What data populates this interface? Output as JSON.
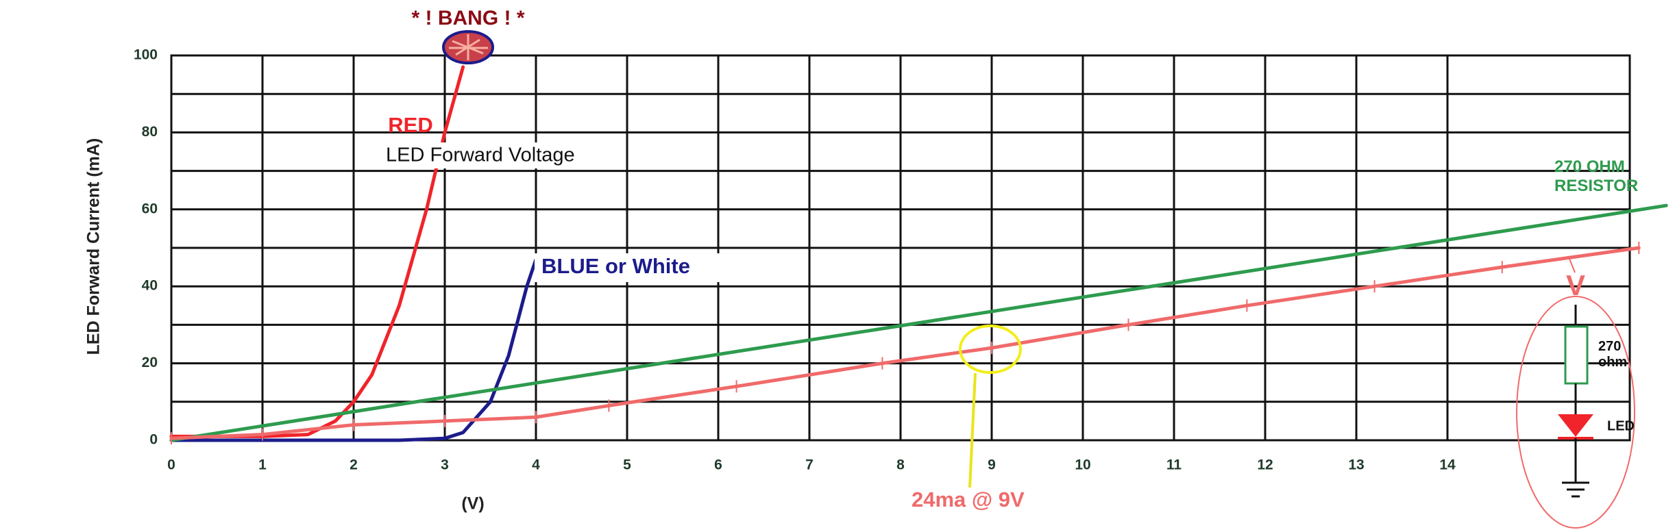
{
  "chart_data": {
    "type": "line",
    "ylabel": "LED Forward Current (mA)",
    "xlabel": "(V)",
    "xlim": [
      0,
      16
    ],
    "ylim": [
      0,
      100
    ],
    "xticks": [
      0,
      1,
      2,
      3,
      4,
      5,
      6,
      7,
      8,
      9,
      10,
      11,
      12,
      13,
      14
    ],
    "yticks": [
      0,
      20,
      40,
      60,
      80,
      100
    ],
    "grid": true,
    "series": [
      {
        "name": "RED",
        "color": "#f0242a",
        "x": [
          0,
          1,
          1.5,
          1.8,
          2,
          2.2,
          2.5,
          2.8,
          3,
          3.2
        ],
        "values": [
          1,
          1,
          1.5,
          5,
          10,
          17,
          35,
          60,
          80,
          97
        ]
      },
      {
        "name": "BLUE or White",
        "color": "#1c1c8c",
        "x": [
          0,
          1.7,
          2.5,
          3,
          3.2,
          3.5,
          3.7,
          3.9,
          4
        ],
        "values": [
          0,
          0,
          0,
          0.5,
          2,
          10,
          22,
          40,
          47
        ]
      },
      {
        "name": "270  OHM RESISTOR",
        "color": "#2e9b4e",
        "x": [
          0,
          16.4
        ],
        "values": [
          0,
          61
        ]
      },
      {
        "color": "#f06a6a",
        "x": [
          0,
          1,
          2,
          3,
          4,
          4.8,
          6.2,
          7.8,
          9,
          10.5,
          11.8,
          13.2,
          14.6,
          16.1
        ],
        "values": [
          0.5,
          1.5,
          4,
          5,
          6,
          9,
          14,
          20,
          24,
          30,
          35,
          40,
          45,
          50
        ]
      }
    ],
    "annotations": {
      "bang": "* ! BANG ! *",
      "forward_voltage": "LED Forward Voltage",
      "point": "24ma @ 9V",
      "voltage": "V",
      "resistor": "270 ohm",
      "led": "LED"
    }
  }
}
